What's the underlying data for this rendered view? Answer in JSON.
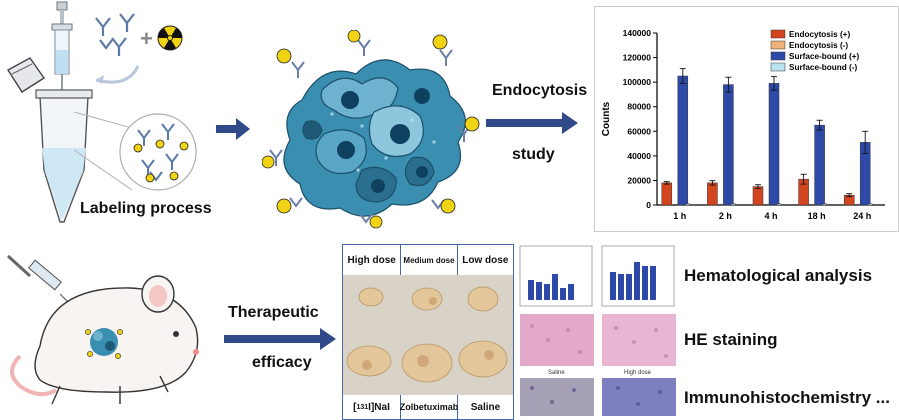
{
  "labels": {
    "labeling": "Labeling process",
    "endocytosis_line1": "Endocytosis",
    "endocytosis_line2": "study",
    "therapeutic_line1": "Therapeutic",
    "therapeutic_line2": "efficacy",
    "hematological": "Hematological analysis",
    "he_staining": "HE staining",
    "ihc": "Immunohistochemistry ..."
  },
  "tumor_panel": {
    "top_headers": [
      "High dose",
      "Medium dose",
      "Low dose"
    ],
    "bottom_headers": [
      "[131I]NaI",
      "Zolbetuximab",
      "Saline"
    ],
    "bottom_header_parts": [
      {
        "bracket_open": "[",
        "superscript": "131",
        "rest": "I]NaI"
      }
    ]
  },
  "ihc_panel": {
    "left_caption": "Saline",
    "right_caption": "High dose"
  },
  "colors": {
    "arrow": "#2f4a86",
    "endocytosis_pos": "#d2451f",
    "endocytosis_neg": "#f0b27a",
    "surface_pos": "#2e4aa8",
    "surface_neg": "#b9e3f2",
    "cell_blue": "#3a8fb0",
    "he_pink": "#e2a9c8",
    "ihc_purple": "#7d7fbf"
  },
  "chart_data": {
    "type": "bar",
    "categories": [
      "1 h",
      "2 h",
      "4 h",
      "18 h",
      "24 h"
    ],
    "series": [
      {
        "name": "Endocytosis (+)",
        "values": [
          18000,
          18000,
          15000,
          21000,
          8000
        ],
        "errors": [
          1000,
          1800,
          1500,
          4000,
          1200
        ]
      },
      {
        "name": "Endocytosis (-)",
        "values": [
          500,
          500,
          500,
          500,
          500
        ],
        "errors": [
          0,
          0,
          0,
          0,
          0
        ]
      },
      {
        "name": "Surface-bound (+)",
        "values": [
          105000,
          98000,
          99000,
          65000,
          51000
        ],
        "errors": [
          6000,
          6000,
          5500,
          4000,
          9000
        ]
      },
      {
        "name": "Surface-bound (-)",
        "values": [
          1000,
          1000,
          1000,
          1000,
          1000
        ],
        "errors": [
          0,
          0,
          0,
          0,
          0
        ]
      }
    ],
    "ylabel": "Counts",
    "ylim": [
      0,
      140000
    ],
    "yticks": [
      "0",
      "20000",
      "40000",
      "60000",
      "80000",
      "100000",
      "120000",
      "140000"
    ],
    "legend_position": "top-right"
  }
}
